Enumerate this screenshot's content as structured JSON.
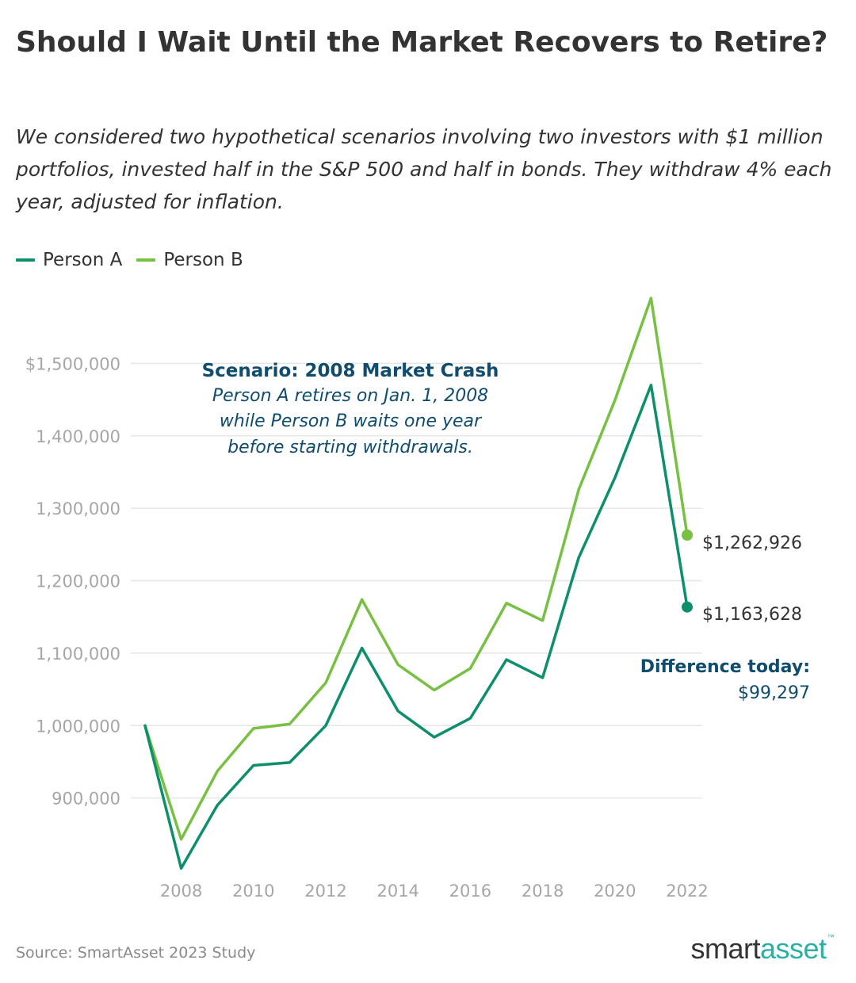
{
  "header": {
    "title": "Should I Wait Until the Market Recovers to Retire?",
    "subtitle": "We considered two hypothetical scenarios involving two investors with $1 million portfolios, invested half in the S&P 500 and half in bonds. They withdraw 4% each year, adjusted for inflation."
  },
  "colors": {
    "person_a": "#0d8f6b",
    "person_b": "#78c043",
    "annotation": "#0f4c6d",
    "grid": "#e6e6e6",
    "tick": "#a6a6a6"
  },
  "chart_data": {
    "type": "line",
    "x": [
      2007,
      2008,
      2009,
      2010,
      2011,
      2012,
      2013,
      2014,
      2015,
      2016,
      2017,
      2018,
      2019,
      2020,
      2021,
      2022
    ],
    "series": [
      {
        "name": "Person A",
        "values": [
          1000000,
          803000,
          890000,
          945000,
          949000,
          1000000,
          1107000,
          1020000,
          984000,
          1010000,
          1091000,
          1066000,
          1232000,
          1342000,
          1470000,
          1163628
        ]
      },
      {
        "name": "Person B",
        "values": [
          1000000,
          843000,
          937000,
          996000,
          1002000,
          1059000,
          1174000,
          1084000,
          1049000,
          1079000,
          1169000,
          1145000,
          1326000,
          1449000,
          1590000,
          1262926
        ]
      }
    ],
    "x_ticks": [
      2008,
      2010,
      2012,
      2014,
      2016,
      2018,
      2020,
      2022
    ],
    "y_ticks": [
      {
        "value": 900000,
        "label": "900,000"
      },
      {
        "value": 1000000,
        "label": "1,000,000"
      },
      {
        "value": 1100000,
        "label": "1,100,000"
      },
      {
        "value": 1200000,
        "label": "1,200,000"
      },
      {
        "value": 1300000,
        "label": "1,300,000"
      },
      {
        "value": 1400000,
        "label": "1,400,000"
      },
      {
        "value": 1500000,
        "label": "$1,500,000"
      }
    ],
    "ylim": [
      800000,
      1600000
    ],
    "xlim": [
      2007,
      2022
    ],
    "grid": true,
    "legend_position": "top-left",
    "end_labels": {
      "person_a": "$1,163,628",
      "person_b": "$1,262,926"
    },
    "annotation": {
      "heading": "Scenario: 2008 Market Crash",
      "lines": [
        "Person A retires on Jan. 1, 2008",
        "while Person B waits one year",
        "before starting withdrawals."
      ]
    },
    "difference": {
      "label": "Difference today:",
      "value": "$99,297"
    }
  },
  "footer": {
    "source": "Source: SmartAsset 2023 Study",
    "logo_part1": "smart",
    "logo_part2": "asset",
    "logo_tm": "™"
  }
}
